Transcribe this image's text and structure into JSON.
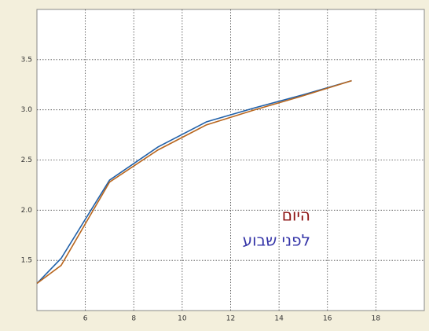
{
  "chart_data": {
    "type": "line",
    "x": [
      4,
      5,
      7,
      9,
      11,
      13,
      15,
      17
    ],
    "series": [
      {
        "name": "היום",
        "color": "#b8661e",
        "label_color": "#8b1010",
        "values": [
          1.27,
          1.45,
          2.28,
          2.6,
          2.85,
          3.0,
          3.14,
          3.29
        ]
      },
      {
        "name": "לפני שבוע",
        "color": "#2060a8",
        "label_color": "#3535a8",
        "values": [
          1.27,
          1.52,
          2.3,
          2.63,
          2.88,
          3.02,
          3.15,
          3.29
        ]
      }
    ],
    "xlim": [
      4,
      20
    ],
    "xticks": [
      6,
      8,
      10,
      12,
      14,
      16,
      18
    ],
    "ylim": [
      1,
      4
    ],
    "yticks": [
      1.5,
      {
        "value": 2,
        "label": "2.0"
      },
      2.5,
      {
        "value": 3,
        "label": "3.0"
      },
      3.5
    ],
    "grid": true
  }
}
